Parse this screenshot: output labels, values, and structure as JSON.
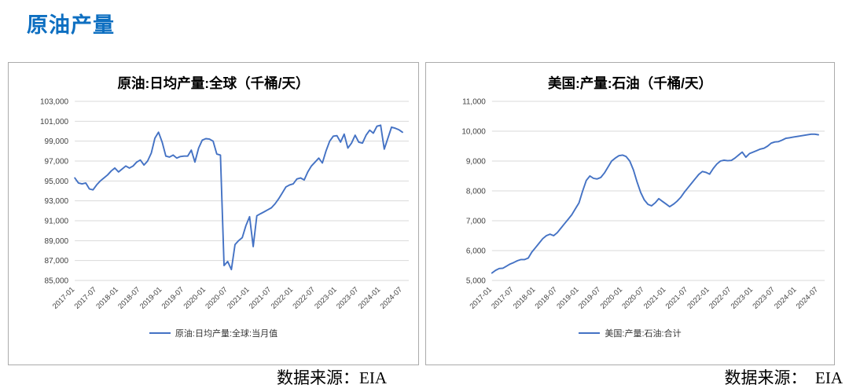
{
  "page": {
    "title": "原油产量",
    "title_color": "#0e6fc1",
    "background": "#ffffff"
  },
  "footers": {
    "left": "数据来源：EIA",
    "right": "数据来源：  EIA"
  },
  "colors": {
    "series_line": "#4472c4",
    "gridline": "#d9d9d9",
    "axis_text": "#404040",
    "panel_border": "#ababab"
  },
  "chart_data": [
    {
      "type": "line",
      "title": "原油:日均产量:全球（千桶/天）",
      "legend": "原油:日均产量:全球:当月值",
      "legend_position": "bottom-center",
      "grid": "horizontal",
      "line_color": "#4472c4",
      "ylim": [
        85000,
        103000
      ],
      "y_step": 2000,
      "y_tick_labels": [
        "85,000",
        "87,000",
        "89,000",
        "91,000",
        "93,000",
        "95,000",
        "97,000",
        "99,000",
        "101,000",
        "103,000"
      ],
      "x_range": [
        "2017-01",
        "2024-07"
      ],
      "x_frequency": "monthly",
      "x_tick_labels": [
        "2017-01",
        "2017-07",
        "2018-01",
        "2018-07",
        "2019-01",
        "2019-07",
        "2020-01",
        "2020-07",
        "2021-01",
        "2021-07",
        "2022-01",
        "2022-07",
        "2023-01",
        "2023-07",
        "2024-01",
        "2024-07"
      ],
      "values": [
        95300,
        94800,
        94700,
        94800,
        94200,
        94100,
        94600,
        95000,
        95300,
        95600,
        96000,
        96300,
        95900,
        96200,
        96500,
        96300,
        96500,
        96900,
        97100,
        96600,
        97000,
        97800,
        99300,
        99900,
        98900,
        97500,
        97400,
        97600,
        97300,
        97450,
        97500,
        97500,
        98100,
        96900,
        98300,
        99100,
        99250,
        99200,
        99000,
        97700,
        97600,
        86500,
        86900,
        86100,
        88600,
        89000,
        89300,
        90500,
        91400,
        88400,
        91500,
        91700,
        91900,
        92100,
        92300,
        92700,
        93200,
        93800,
        94400,
        94600,
        94700,
        95200,
        95300,
        95100,
        95900,
        96500,
        96900,
        97300,
        96800,
        98000,
        99000,
        99500,
        99550,
        98900,
        99700,
        98300,
        98800,
        99600,
        98900,
        98800,
        99600,
        100100,
        99800,
        100500,
        100600,
        98200,
        99300,
        100400,
        100300,
        100150,
        99900
      ]
    },
    {
      "type": "line",
      "title": "美国:产量:石油（千桶/天）",
      "legend": "美国:产量:石油:合计",
      "legend_position": "bottom-center",
      "grid": "horizontal",
      "line_color": "#4472c4",
      "ylim": [
        5000,
        11000
      ],
      "y_step": 1000,
      "y_tick_labels": [
        "5,000",
        "6,000",
        "7,000",
        "8,000",
        "9,000",
        "10,000",
        "11,000"
      ],
      "x_range": [
        "2017-01",
        "2024-07"
      ],
      "x_frequency": "monthly",
      "x_tick_labels": [
        "2017-01",
        "2017-07",
        "2018-01",
        "2018-07",
        "2019-01",
        "2019-07",
        "2020-01",
        "2020-07",
        "2021-01",
        "2021-07",
        "2022-01",
        "2022-07",
        "2023-01",
        "2023-07",
        "2024-01",
        "2024-07"
      ],
      "values": [
        5250,
        5340,
        5400,
        5410,
        5480,
        5550,
        5600,
        5660,
        5700,
        5700,
        5750,
        5950,
        6100,
        6250,
        6400,
        6500,
        6550,
        6500,
        6600,
        6750,
        6900,
        7050,
        7200,
        7400,
        7600,
        8000,
        8350,
        8500,
        8420,
        8400,
        8450,
        8600,
        8800,
        9000,
        9100,
        9180,
        9200,
        9150,
        9000,
        8700,
        8300,
        7950,
        7700,
        7550,
        7500,
        7600,
        7740,
        7650,
        7560,
        7470,
        7550,
        7650,
        7780,
        7950,
        8100,
        8250,
        8400,
        8550,
        8650,
        8620,
        8560,
        8750,
        8900,
        9000,
        9030,
        9010,
        9020,
        9100,
        9200,
        9300,
        9130,
        9250,
        9300,
        9350,
        9400,
        9430,
        9500,
        9600,
        9640,
        9650,
        9700,
        9760,
        9780,
        9800,
        9820,
        9840,
        9860,
        9880,
        9900,
        9900,
        9880
      ]
    }
  ]
}
